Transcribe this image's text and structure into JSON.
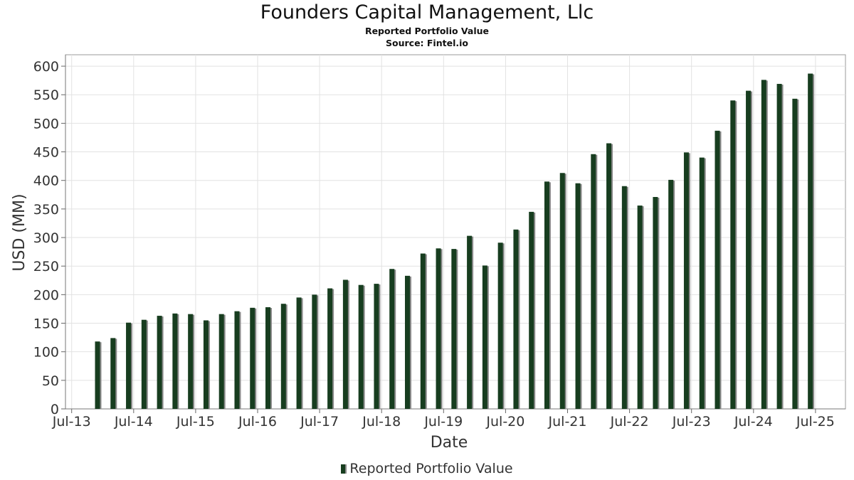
{
  "chart_data": {
    "type": "bar",
    "title": "Founders Capital Management, Llc",
    "subtitle": "Reported Portfolio Value",
    "source": "Source: Fintel.io",
    "xlabel": "Date",
    "ylabel": "USD (MM)",
    "ylim": [
      0,
      620
    ],
    "yticks": [
      0,
      50,
      100,
      150,
      200,
      250,
      300,
      350,
      400,
      450,
      500,
      550,
      600
    ],
    "xticks": [
      "Jul-13",
      "Jul-14",
      "Jul-15",
      "Jul-16",
      "Jul-17",
      "Jul-18",
      "Jul-19",
      "Jul-20",
      "Jul-21",
      "Jul-22",
      "Jul-23",
      "Jul-24",
      "Jul-25"
    ],
    "grid": true,
    "legend_position": "bottom",
    "series": [
      {
        "name": "Reported Portfolio Value",
        "color": "#173d1f",
        "shadow_color": "#8a8a8a",
        "x": [
          "Dec-13",
          "Mar-14",
          "Jun-14",
          "Sep-14",
          "Dec-14",
          "Mar-15",
          "Jun-15",
          "Sep-15",
          "Dec-15",
          "Mar-16",
          "Jun-16",
          "Sep-16",
          "Dec-16",
          "Mar-17",
          "Jun-17",
          "Sep-17",
          "Dec-17",
          "Mar-18",
          "Jun-18",
          "Sep-18",
          "Dec-18",
          "Mar-19",
          "Jun-19",
          "Sep-19",
          "Dec-19",
          "Mar-20",
          "Jun-20",
          "Sep-20",
          "Dec-20",
          "Mar-21",
          "Jun-21",
          "Sep-21",
          "Dec-21",
          "Mar-22",
          "Jun-22",
          "Sep-22",
          "Dec-22",
          "Mar-23",
          "Jun-23",
          "Sep-23",
          "Dec-23",
          "Mar-24",
          "Jun-24",
          "Sep-24",
          "Dec-24",
          "Mar-25",
          "Jun-25"
        ],
        "values": [
          118,
          124,
          151,
          156,
          163,
          167,
          166,
          155,
          166,
          171,
          177,
          178,
          184,
          195,
          200,
          211,
          226,
          217,
          219,
          245,
          233,
          272,
          281,
          280,
          303,
          251,
          291,
          314,
          345,
          398,
          413,
          395,
          446,
          465,
          390,
          356,
          371,
          401,
          449,
          440,
          487,
          540,
          557,
          576,
          569,
          543,
          587
        ]
      }
    ]
  }
}
